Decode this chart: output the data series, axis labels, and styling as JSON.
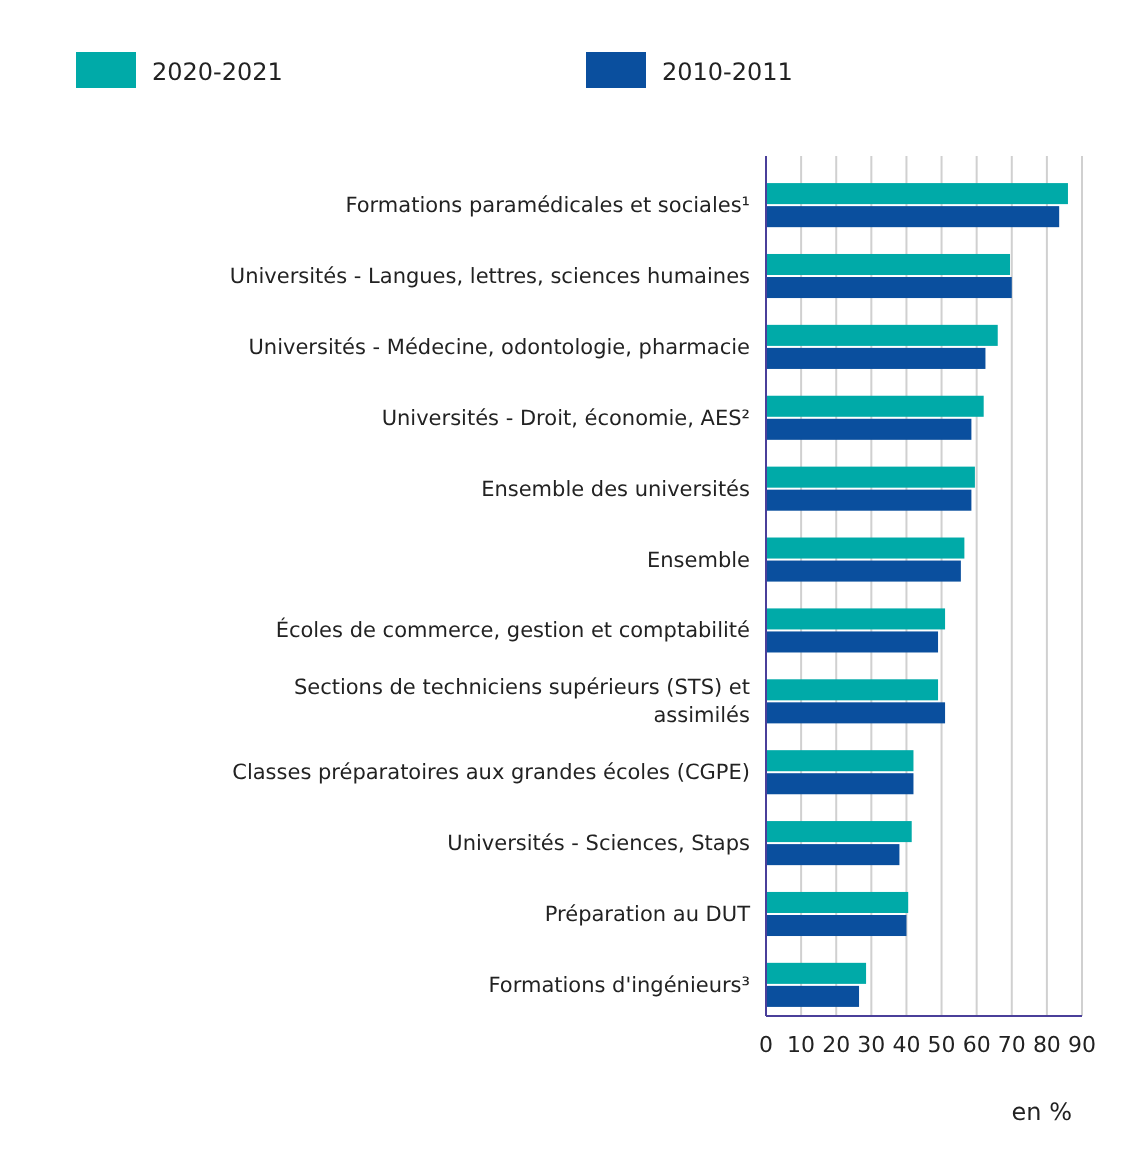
{
  "chart_data": {
    "type": "bar",
    "orientation": "horizontal",
    "categories": [
      "Formations paramédicales et sociales¹",
      "Universités - Langues, lettres, sciences humaines",
      "Universités - Médecine, odontologie, pharmacie",
      "Universités - Droit, économie, AES²",
      "Ensemble des universités",
      "Ensemble",
      "Écoles de commerce, gestion et comptabilité",
      "Sections de techniciens supérieurs (STS) et assimilés",
      "Classes préparatoires aux grandes écoles (CGPE)",
      "Universités - Sciences, Staps",
      "Préparation au DUT",
      "Formations d'ingénieurs³"
    ],
    "series": [
      {
        "name": "2020-2021",
        "color": "#00aaa8",
        "values": [
          86,
          69.5,
          66,
          62,
          59.5,
          56.5,
          51,
          49,
          42,
          41.5,
          40.5,
          28.5
        ]
      },
      {
        "name": "2010-2011",
        "color": "#0a4f9e",
        "values": [
          83.5,
          70,
          62.5,
          58.5,
          58.5,
          55.5,
          49,
          51,
          42,
          38,
          40,
          26.5
        ]
      }
    ],
    "xlim": [
      0,
      90
    ],
    "xticks": [
      0,
      10,
      20,
      30,
      40,
      50,
      60,
      70,
      80,
      90
    ],
    "xlabel": "en %",
    "grid": "x",
    "legend": "top left"
  }
}
